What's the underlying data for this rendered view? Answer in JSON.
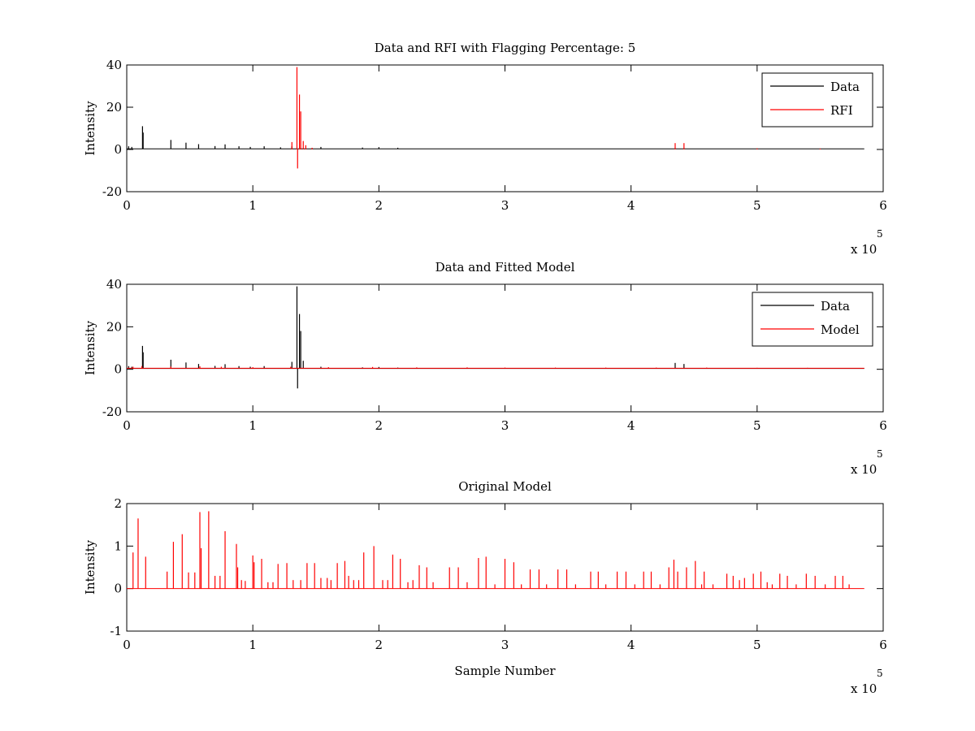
{
  "chart_data": [
    {
      "type": "line",
      "title": "Data and RFI with Flagging Percentage: 5",
      "xlabel": "",
      "ylabel": "Intensity",
      "xlim": [
        0,
        600000
      ],
      "ylim": [
        -20,
        40
      ],
      "xticks": [
        0,
        100000,
        200000,
        300000,
        400000,
        500000,
        600000
      ],
      "xtick_labels": [
        "0",
        "1",
        "2",
        "3",
        "4",
        "5",
        "6"
      ],
      "yticks": [
        -20,
        0,
        20,
        40
      ],
      "ytick_labels": [
        "-20",
        "0",
        "20",
        "40"
      ],
      "x_multiplier": "x 10",
      "x_multiplier_exp": "5",
      "x_end": 585000,
      "grid": false,
      "legend_position": "top-right",
      "series": [
        {
          "name": "Data",
          "color": "#000000",
          "baseline": 0.3,
          "spikes": [
            [
              1500,
              1.5
            ],
            [
              4000,
              1.2
            ],
            [
              12500,
              11
            ],
            [
              13000,
              8
            ],
            [
              35000,
              4.5
            ],
            [
              47000,
              3.2
            ],
            [
              57000,
              2.5
            ],
            [
              70000,
              1.6
            ],
            [
              78000,
              2.4
            ],
            [
              89000,
              1.5
            ],
            [
              98000,
              1.2
            ],
            [
              109000,
              1.5
            ],
            [
              122000,
              1.0
            ],
            [
              131000,
              1.5
            ],
            [
              154000,
              1.2
            ],
            [
              187000,
              0.9
            ],
            [
              200000,
              1.1
            ],
            [
              215000,
              0.8
            ]
          ]
        },
        {
          "name": "RFI",
          "color": "#ff0000",
          "spikes": [
            [
              131000,
              3.5
            ],
            [
              135000,
              39
            ],
            [
              135500,
              -9
            ],
            [
              137000,
              26
            ],
            [
              138000,
              18
            ],
            [
              140000,
              4
            ],
            [
              142000,
              2
            ],
            [
              147000,
              0.8
            ],
            [
              435000,
              3
            ],
            [
              442000,
              3
            ],
            [
              500000,
              0.5
            ],
            [
              550000,
              0.4
            ]
          ]
        }
      ]
    },
    {
      "type": "line",
      "title": "Data and Fitted Model",
      "xlabel": "",
      "ylabel": "Intensity",
      "xlim": [
        0,
        600000
      ],
      "ylim": [
        -20,
        40
      ],
      "xticks": [
        0,
        100000,
        200000,
        300000,
        400000,
        500000,
        600000
      ],
      "xtick_labels": [
        "0",
        "1",
        "2",
        "3",
        "4",
        "5",
        "6"
      ],
      "yticks": [
        -20,
        0,
        20,
        40
      ],
      "ytick_labels": [
        "-20",
        "0",
        "20",
        "40"
      ],
      "x_multiplier": "x 10",
      "x_multiplier_exp": "5",
      "x_end": 585000,
      "grid": false,
      "legend_position": "top-right",
      "series": [
        {
          "name": "Data",
          "color": "#000000",
          "baseline": 0.4,
          "spikes": [
            [
              1500,
              1.5
            ],
            [
              4000,
              1.2
            ],
            [
              12500,
              11
            ],
            [
              13000,
              8
            ],
            [
              35000,
              4.5
            ],
            [
              47000,
              3.2
            ],
            [
              57000,
              2.5
            ],
            [
              70000,
              1.6
            ],
            [
              78000,
              2.4
            ],
            [
              89000,
              1.5
            ],
            [
              98000,
              1.2
            ],
            [
              109000,
              1.5
            ],
            [
              131000,
              3.5
            ],
            [
              135000,
              39
            ],
            [
              135500,
              -9
            ],
            [
              137000,
              26
            ],
            [
              138000,
              18
            ],
            [
              140000,
              4
            ],
            [
              154000,
              1.2
            ],
            [
              187000,
              0.9
            ],
            [
              200000,
              1.1
            ],
            [
              215000,
              0.8
            ],
            [
              435000,
              3
            ],
            [
              442000,
              2.5
            ]
          ]
        },
        {
          "name": "Model",
          "color": "#ff0000",
          "baseline": 0.5,
          "spikes": [
            [
              5000,
              1.2
            ],
            [
              12000,
              1.5
            ],
            [
              35000,
              1.3
            ],
            [
              58000,
              1.4
            ],
            [
              75000,
              1.2
            ],
            [
              100000,
              1.0
            ],
            [
              130000,
              1.2
            ],
            [
              160000,
              1.0
            ],
            [
              195000,
              1.1
            ],
            [
              230000,
              0.9
            ],
            [
              270000,
              0.9
            ],
            [
              300000,
              0.8
            ],
            [
              340000,
              0.8
            ],
            [
              380000,
              0.8
            ],
            [
              420000,
              0.8
            ],
            [
              460000,
              0.8
            ],
            [
              500000,
              0.7
            ],
            [
              540000,
              0.7
            ],
            [
              575000,
              0.6
            ]
          ]
        }
      ]
    },
    {
      "type": "line",
      "title": "Original Model",
      "xlabel": "Sample Number",
      "ylabel": "Intensity",
      "xlim": [
        0,
        600000
      ],
      "ylim": [
        -1,
        2
      ],
      "xticks": [
        0,
        100000,
        200000,
        300000,
        400000,
        500000,
        600000
      ],
      "xtick_labels": [
        "0",
        "1",
        "2",
        "3",
        "4",
        "5",
        "6"
      ],
      "yticks": [
        -1,
        0,
        1,
        2
      ],
      "ytick_labels": [
        "-1",
        "0",
        "1",
        "2"
      ],
      "x_multiplier": "x 10",
      "x_multiplier_exp": "5",
      "x_end": 585000,
      "grid": false,
      "series": [
        {
          "name": "",
          "color": "#ff0000",
          "baseline": 0.0,
          "spikes": [
            [
              5000,
              0.85
            ],
            [
              9000,
              1.65
            ],
            [
              15000,
              0.75
            ],
            [
              32000,
              0.4
            ],
            [
              37000,
              1.1
            ],
            [
              44000,
              1.28
            ],
            [
              49000,
              0.38
            ],
            [
              54000,
              0.38
            ],
            [
              58000,
              1.8
            ],
            [
              59000,
              0.95
            ],
            [
              65000,
              1.82
            ],
            [
              70000,
              0.3
            ],
            [
              74000,
              0.3
            ],
            [
              78000,
              1.35
            ],
            [
              87000,
              1.05
            ],
            [
              88000,
              0.5
            ],
            [
              91000,
              0.2
            ],
            [
              94000,
              0.18
            ],
            [
              100000,
              0.78
            ],
            [
              101000,
              0.62
            ],
            [
              107000,
              0.7
            ],
            [
              112000,
              0.15
            ],
            [
              116000,
              0.15
            ],
            [
              120000,
              0.58
            ],
            [
              127000,
              0.6
            ],
            [
              132000,
              0.2
            ],
            [
              138000,
              0.2
            ],
            [
              143000,
              0.6
            ],
            [
              149000,
              0.6
            ],
            [
              154000,
              0.25
            ],
            [
              159000,
              0.25
            ],
            [
              162000,
              0.2
            ],
            [
              167000,
              0.6
            ],
            [
              173000,
              0.65
            ],
            [
              176000,
              0.3
            ],
            [
              180000,
              0.2
            ],
            [
              184000,
              0.2
            ],
            [
              188000,
              0.85
            ],
            [
              196000,
              1.0
            ],
            [
              203000,
              0.2
            ],
            [
              207000,
              0.2
            ],
            [
              211000,
              0.8
            ],
            [
              217000,
              0.7
            ],
            [
              223000,
              0.15
            ],
            [
              227000,
              0.2
            ],
            [
              232000,
              0.55
            ],
            [
              238000,
              0.5
            ],
            [
              243000,
              0.15
            ],
            [
              256000,
              0.5
            ],
            [
              263000,
              0.5
            ],
            [
              270000,
              0.15
            ],
            [
              279000,
              0.72
            ],
            [
              285000,
              0.75
            ],
            [
              292000,
              0.1
            ],
            [
              300000,
              0.7
            ],
            [
              307000,
              0.62
            ],
            [
              313000,
              0.1
            ],
            [
              320000,
              0.45
            ],
            [
              327000,
              0.45
            ],
            [
              333000,
              0.1
            ],
            [
              342000,
              0.45
            ],
            [
              349000,
              0.45
            ],
            [
              356000,
              0.1
            ],
            [
              368000,
              0.4
            ],
            [
              374000,
              0.4
            ],
            [
              380000,
              0.1
            ],
            [
              389000,
              0.4
            ],
            [
              396000,
              0.4
            ],
            [
              403000,
              0.1
            ],
            [
              410000,
              0.4
            ],
            [
              416000,
              0.4
            ],
            [
              423000,
              0.1
            ],
            [
              430000,
              0.5
            ],
            [
              434000,
              0.68
            ],
            [
              437000,
              0.4
            ],
            [
              444000,
              0.5
            ],
            [
              451000,
              0.65
            ],
            [
              456000,
              0.1
            ],
            [
              458000,
              0.4
            ],
            [
              465000,
              0.1
            ],
            [
              476000,
              0.35
            ],
            [
              481000,
              0.3
            ],
            [
              486000,
              0.2
            ],
            [
              490000,
              0.25
            ],
            [
              497000,
              0.35
            ],
            [
              503000,
              0.4
            ],
            [
              508000,
              0.15
            ],
            [
              512000,
              0.1
            ],
            [
              518000,
              0.35
            ],
            [
              524000,
              0.3
            ],
            [
              531000,
              0.1
            ],
            [
              539000,
              0.35
            ],
            [
              546000,
              0.3
            ],
            [
              554000,
              0.1
            ],
            [
              562000,
              0.3
            ],
            [
              568000,
              0.3
            ],
            [
              573000,
              0.1
            ]
          ]
        }
      ]
    }
  ]
}
